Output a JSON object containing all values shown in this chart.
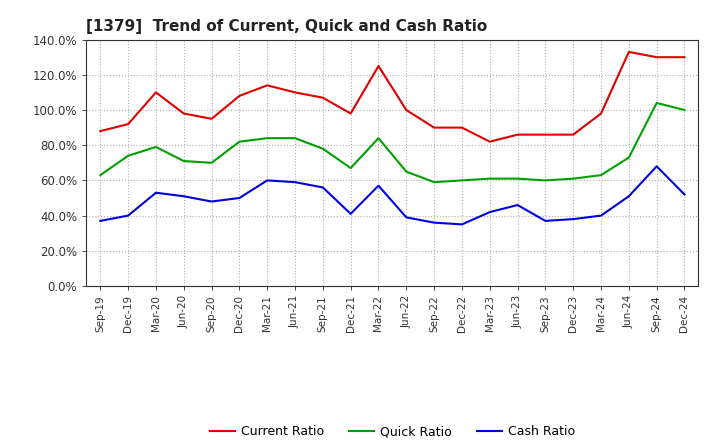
{
  "title": "[1379]  Trend of Current, Quick and Cash Ratio",
  "labels": [
    "Sep-19",
    "Dec-19",
    "Mar-20",
    "Jun-20",
    "Sep-20",
    "Dec-20",
    "Mar-21",
    "Jun-21",
    "Sep-21",
    "Dec-21",
    "Mar-22",
    "Jun-22",
    "Sep-22",
    "Dec-22",
    "Mar-23",
    "Jun-23",
    "Sep-23",
    "Dec-23",
    "Mar-24",
    "Jun-24",
    "Sep-24",
    "Dec-24"
  ],
  "current_ratio": [
    88,
    92,
    110,
    98,
    95,
    108,
    114,
    110,
    107,
    98,
    125,
    100,
    90,
    90,
    82,
    86,
    86,
    86,
    98,
    133,
    130,
    130
  ],
  "quick_ratio": [
    63,
    74,
    79,
    71,
    70,
    82,
    84,
    84,
    78,
    67,
    84,
    65,
    59,
    60,
    61,
    61,
    60,
    61,
    63,
    73,
    104,
    100
  ],
  "cash_ratio": [
    37,
    40,
    53,
    51,
    48,
    50,
    60,
    59,
    56,
    41,
    57,
    39,
    36,
    35,
    42,
    46,
    37,
    38,
    40,
    51,
    68,
    52
  ],
  "current_color": "#e00000",
  "quick_color": "#00a000",
  "cash_color": "#0000e0",
  "ylim": [
    0,
    140
  ],
  "yticks": [
    0,
    20,
    40,
    60,
    80,
    100,
    120,
    140
  ],
  "background_color": "#ffffff",
  "grid_color": "#b0b0b0",
  "legend_labels": [
    "Current Ratio",
    "Quick Ratio",
    "Cash Ratio"
  ]
}
